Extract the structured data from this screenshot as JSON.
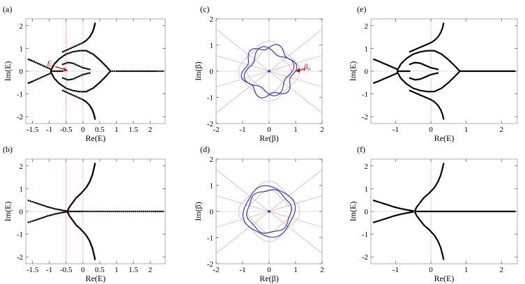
{
  "colors": {
    "dots": "#000000",
    "curve_blue": "#2a2ab4",
    "curve_pink": "#e8b6c0",
    "reference_red": "#f0a0a8",
    "reference_grey": "#bbbbbb",
    "annotation_red": "#d00000",
    "frame": "#9a9a9a"
  },
  "chart_data": [
    {
      "panel": "(a)",
      "type": "scatter",
      "xlabel": "Re(E)",
      "ylabel": "Im(E)",
      "xlim": [
        -1.7,
        2.45
      ],
      "ylim": [
        -2.3,
        2.3
      ],
      "xticks": [
        "-1.5",
        "-1",
        "-0.5",
        "0",
        "0.5",
        "1",
        "1.5",
        "2"
      ],
      "xtick_values": [
        -1.5,
        -1,
        -0.5,
        0,
        0.5,
        1,
        1.5,
        2
      ],
      "yticks": [
        "-2",
        "-1",
        "0",
        "1",
        "2"
      ],
      "ytick_values": [
        -2,
        -1,
        0,
        1,
        2
      ],
      "reference_line_x": -0.5,
      "annotation": {
        "text": "E₀",
        "point": [
          -0.45,
          0.02
        ]
      },
      "series": [
        {
          "points": [
            [
              -1.62,
              0.52
            ],
            [
              -1.5,
              0.45
            ],
            [
              -1.35,
              0.35
            ],
            [
              -1.2,
              0.25
            ],
            [
              -1.05,
              0.15
            ],
            [
              -0.95,
              0.08
            ]
          ]
        },
        {
          "points": [
            [
              -1.62,
              -0.52
            ],
            [
              -1.5,
              -0.45
            ],
            [
              -1.35,
              -0.35
            ],
            [
              -1.2,
              -0.25
            ],
            [
              -1.05,
              -0.15
            ],
            [
              -0.95,
              -0.08
            ]
          ]
        },
        {
          "points": [
            [
              -0.95,
              0.05
            ],
            [
              -0.85,
              0.32
            ],
            [
              -0.7,
              0.55
            ],
            [
              -0.5,
              0.75
            ],
            [
              -0.3,
              0.85
            ],
            [
              -0.1,
              0.9
            ],
            [
              0.1,
              0.9
            ],
            [
              0.3,
              0.75
            ],
            [
              0.5,
              0.5
            ],
            [
              0.7,
              0.2
            ],
            [
              0.82,
              0
            ]
          ]
        },
        {
          "points": [
            [
              -0.95,
              -0.05
            ],
            [
              -0.85,
              -0.32
            ],
            [
              -0.7,
              -0.55
            ],
            [
              -0.5,
              -0.75
            ],
            [
              -0.3,
              -0.85
            ],
            [
              -0.1,
              -0.9
            ],
            [
              0.1,
              -0.9
            ],
            [
              0.3,
              -0.75
            ],
            [
              0.5,
              -0.5
            ],
            [
              0.7,
              -0.2
            ],
            [
              0.82,
              0
            ]
          ]
        },
        {
          "points": [
            [
              -0.6,
              0.85
            ],
            [
              -0.45,
              0.95
            ],
            [
              -0.3,
              1.05
            ],
            [
              -0.15,
              1.15
            ],
            [
              0,
              1.25
            ],
            [
              0.1,
              1.35
            ],
            [
              0.2,
              1.5
            ],
            [
              0.28,
              1.7
            ],
            [
              0.33,
              1.9
            ],
            [
              0.36,
              2.1
            ]
          ]
        },
        {
          "points": [
            [
              -0.6,
              -0.85
            ],
            [
              -0.45,
              -0.95
            ],
            [
              -0.3,
              -1.05
            ],
            [
              -0.15,
              -1.15
            ],
            [
              0,
              -1.25
            ],
            [
              0.1,
              -1.35
            ],
            [
              0.2,
              -1.5
            ],
            [
              0.28,
              -1.7
            ],
            [
              0.33,
              -1.9
            ],
            [
              0.36,
              -2.1
            ]
          ]
        },
        {
          "points": [
            [
              -0.6,
              0.3
            ],
            [
              -0.45,
              0.38
            ],
            [
              -0.3,
              0.35
            ],
            [
              -0.15,
              0.25
            ],
            [
              0.0,
              0.15
            ],
            [
              0.2,
              0.08
            ]
          ]
        },
        {
          "points": [
            [
              -0.6,
              -0.3
            ],
            [
              -0.45,
              -0.38
            ],
            [
              -0.3,
              -0.35
            ],
            [
              -0.15,
              -0.25
            ],
            [
              0.0,
              -0.15
            ],
            [
              0.2,
              -0.08
            ]
          ]
        },
        {
          "points": [
            [
              0.82,
              0
            ],
            [
              1.0,
              0
            ],
            [
              1.2,
              0
            ],
            [
              1.4,
              0
            ],
            [
              1.6,
              0
            ],
            [
              1.8,
              0
            ],
            [
              2.0,
              0
            ],
            [
              2.2,
              0
            ],
            [
              2.38,
              0
            ]
          ]
        },
        {
          "points": [
            [
              -0.95,
              0
            ],
            [
              -0.85,
              0
            ],
            [
              -0.7,
              0
            ],
            [
              -0.6,
              0
            ]
          ]
        }
      ]
    },
    {
      "panel": "(b)",
      "type": "scatter",
      "xlabel": "Re(E)",
      "ylabel": "Im(E)",
      "xlim": [
        -1.7,
        2.45
      ],
      "ylim": [
        -2.3,
        2.3
      ],
      "xticks": [
        "-1.5",
        "-1",
        "-0.5",
        "0",
        "0.5",
        "1",
        "1.5",
        "2"
      ],
      "xtick_values": [
        -1.5,
        -1,
        -0.5,
        0,
        0.5,
        1,
        1.5,
        2
      ],
      "yticks": [
        "-2",
        "-1",
        "0",
        "1",
        "2"
      ],
      "ytick_values": [
        -2,
        -1,
        0,
        1,
        2
      ],
      "reference_line_x": -0.5,
      "series": [
        {
          "points": [
            [
              -1.62,
              0.48
            ],
            [
              -1.45,
              0.4
            ],
            [
              -1.25,
              0.3
            ],
            [
              -1.05,
              0.2
            ],
            [
              -0.85,
              0.12
            ],
            [
              -0.65,
              0.06
            ],
            [
              -0.5,
              0.02
            ]
          ]
        },
        {
          "points": [
            [
              -1.62,
              -0.48
            ],
            [
              -1.45,
              -0.4
            ],
            [
              -1.25,
              -0.3
            ],
            [
              -1.05,
              -0.2
            ],
            [
              -0.85,
              -0.12
            ],
            [
              -0.65,
              -0.06
            ],
            [
              -0.5,
              -0.02
            ]
          ]
        },
        {
          "points": [
            [
              -0.45,
              0.05
            ],
            [
              -0.4,
              0.2
            ],
            [
              -0.3,
              0.4
            ],
            [
              -0.2,
              0.6
            ],
            [
              -0.05,
              0.8
            ],
            [
              0.1,
              1.05
            ],
            [
              0.2,
              1.3
            ],
            [
              0.28,
              1.6
            ],
            [
              0.33,
              1.9
            ],
            [
              0.36,
              2.1
            ]
          ]
        },
        {
          "points": [
            [
              -0.45,
              -0.05
            ],
            [
              -0.4,
              -0.2
            ],
            [
              -0.3,
              -0.4
            ],
            [
              -0.2,
              -0.6
            ],
            [
              -0.05,
              -0.8
            ],
            [
              0.1,
              -1.05
            ],
            [
              0.2,
              -1.3
            ],
            [
              0.28,
              -1.6
            ],
            [
              0.33,
              -1.9
            ],
            [
              0.36,
              -2.1
            ]
          ]
        },
        {
          "points": [
            [
              -0.45,
              0
            ],
            [
              -0.2,
              0
            ],
            [
              0.0,
              0
            ],
            [
              0.3,
              0
            ],
            [
              0.6,
              0
            ],
            [
              0.9,
              0
            ],
            [
              1.2,
              0
            ],
            [
              1.5,
              0
            ],
            [
              1.8,
              0
            ],
            [
              2.1,
              0
            ],
            [
              2.38,
              0
            ]
          ]
        }
      ]
    },
    {
      "panel": "(c)",
      "type": "line",
      "xlabel": "Re(β)",
      "ylabel": "Im(β)",
      "xlim": [
        -2,
        2
      ],
      "ylim": [
        -2,
        2
      ],
      "xticks": [
        "-2",
        "-1",
        "0",
        "1",
        "2"
      ],
      "xtick_values": [
        -2,
        -1,
        0,
        1,
        2
      ],
      "yticks": [
        "-2",
        "-1",
        "0",
        "1",
        "2"
      ],
      "ytick_values": [
        -2,
        -1,
        0,
        1,
        2
      ],
      "annotation": {
        "text": "β₀",
        "point": [
          1.0,
          0.0
        ]
      }
    },
    {
      "panel": "(d)",
      "type": "line",
      "xlabel": "Re(β)",
      "ylabel": "Im(β)",
      "xlim": [
        -2,
        2
      ],
      "ylim": [
        -2,
        2
      ],
      "xticks": [
        "-2",
        "-1",
        "0",
        "1",
        "2"
      ],
      "xtick_values": [
        -2,
        -1,
        0,
        1,
        2
      ],
      "yticks": [
        "-2",
        "-1",
        "0",
        "1",
        "2"
      ],
      "ytick_values": [
        -2,
        -1,
        0,
        1,
        2
      ]
    },
    {
      "panel": "(e)",
      "type": "line",
      "xlabel": "Re(E)",
      "ylabel": "Im(E)",
      "xlim": [
        -1.7,
        2.45
      ],
      "ylim": [
        -2.3,
        2.3
      ],
      "xticks": [
        "-1",
        "0",
        "1",
        "2"
      ],
      "xtick_values": [
        -1,
        0,
        1,
        2
      ],
      "yticks": [
        "-2",
        "-1",
        "0",
        "1",
        "2"
      ],
      "ytick_values": [
        -2,
        -1,
        0,
        1,
        2
      ]
    },
    {
      "panel": "(f)",
      "type": "line",
      "xlabel": "Re(E)",
      "ylabel": "Im(E)",
      "xlim": [
        -1.7,
        2.45
      ],
      "ylim": [
        -2.3,
        2.3
      ],
      "xticks": [
        "-1",
        "0",
        "1",
        "2"
      ],
      "xtick_values": [
        -1,
        0,
        1,
        2
      ],
      "yticks": [
        "-2",
        "-1",
        "0",
        "1",
        "2"
      ],
      "ytick_values": [
        -2,
        -1,
        0,
        1,
        2
      ]
    }
  ]
}
